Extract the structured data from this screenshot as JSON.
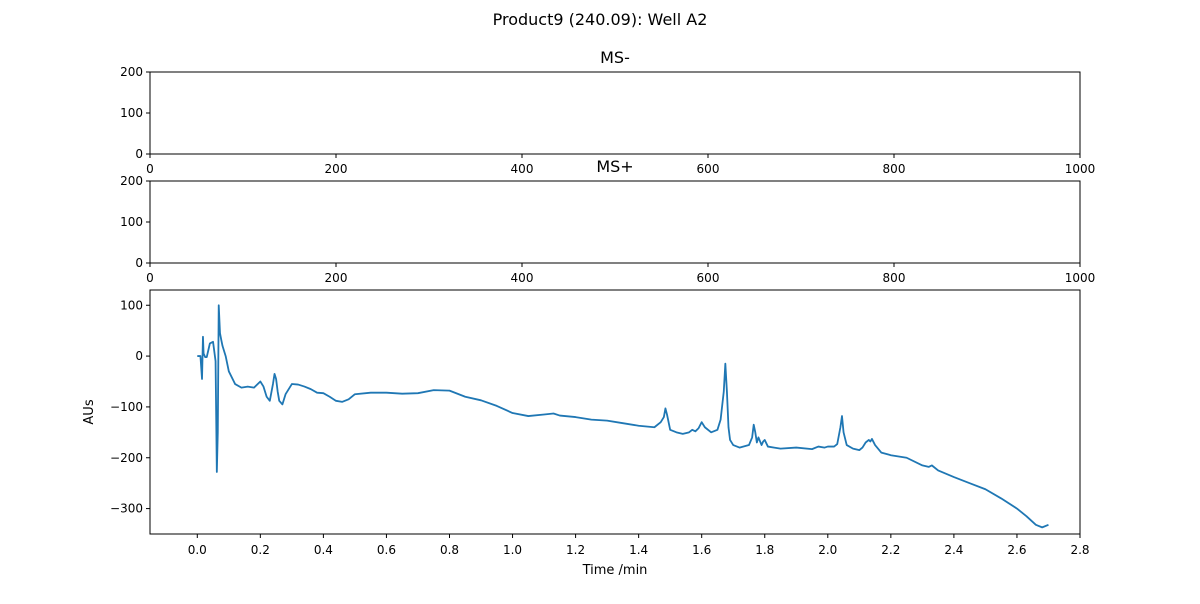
{
  "figure_title": "Product9 (240.09): Well A2",
  "chart_data": [
    {
      "type": "line",
      "title": "MS-",
      "xlabel": "",
      "ylabel": "",
      "xlim": [
        0,
        1000
      ],
      "ylim": [
        0,
        200
      ],
      "xticks": [
        0,
        200,
        400,
        600,
        800,
        1000
      ],
      "yticks": [
        0,
        100,
        200
      ],
      "series": []
    },
    {
      "type": "line",
      "title": "MS+",
      "xlabel": "",
      "ylabel": "",
      "xlim": [
        0,
        1000
      ],
      "ylim": [
        0,
        200
      ],
      "xticks": [
        0,
        200,
        400,
        600,
        800,
        1000
      ],
      "yticks": [
        0,
        100,
        200
      ],
      "series": []
    },
    {
      "type": "line",
      "title": "",
      "xlabel": "Time /min",
      "ylabel": "AUs",
      "xlim": [
        -0.15,
        2.8
      ],
      "ylim": [
        -350,
        130
      ],
      "xticks": [
        0.0,
        0.2,
        0.4,
        0.6,
        0.8,
        1.0,
        1.2,
        1.4,
        1.6,
        1.8,
        2.0,
        2.2,
        2.4,
        2.6,
        2.8
      ],
      "xticklabels": [
        "0.0",
        "0.2",
        "0.4",
        "0.6",
        "0.8",
        "1.0",
        "1.2",
        "1.4",
        "1.6",
        "1.8",
        "2.0",
        "2.2",
        "2.4",
        "2.6",
        "2.8"
      ],
      "yticks": [
        100,
        0,
        -100,
        -200,
        -300
      ],
      "yticklabels": [
        "100",
        "0",
        "−100",
        "−200",
        "−300"
      ],
      "color": "#1f77b4",
      "series": [
        {
          "x": [
            0.0,
            0.01,
            0.015,
            0.018,
            0.02,
            0.025,
            0.03,
            0.04,
            0.05,
            0.058,
            0.062,
            0.065,
            0.068,
            0.072,
            0.076,
            0.08,
            0.09,
            0.1,
            0.12,
            0.14,
            0.16,
            0.18,
            0.2,
            0.21,
            0.22,
            0.23,
            0.24,
            0.245,
            0.25,
            0.255,
            0.26,
            0.27,
            0.28,
            0.3,
            0.32,
            0.34,
            0.36,
            0.38,
            0.4,
            0.42,
            0.44,
            0.46,
            0.48,
            0.5,
            0.55,
            0.6,
            0.65,
            0.7,
            0.75,
            0.8,
            0.85,
            0.9,
            0.95,
            1.0,
            1.05,
            1.1,
            1.13,
            1.15,
            1.2,
            1.25,
            1.3,
            1.35,
            1.4,
            1.45,
            1.47,
            1.48,
            1.485,
            1.49,
            1.5,
            1.52,
            1.54,
            1.56,
            1.57,
            1.58,
            1.59,
            1.6,
            1.61,
            1.63,
            1.65,
            1.66,
            1.67,
            1.675,
            1.68,
            1.685,
            1.69,
            1.7,
            1.72,
            1.75,
            1.76,
            1.765,
            1.77,
            1.775,
            1.78,
            1.79,
            1.795,
            1.8,
            1.81,
            1.83,
            1.85,
            1.9,
            1.95,
            1.97,
            1.99,
            2.0,
            2.02,
            2.03,
            2.04,
            2.045,
            2.05,
            2.06,
            2.08,
            2.1,
            2.11,
            2.12,
            2.13,
            2.135,
            2.14,
            2.15,
            2.17,
            2.2,
            2.25,
            2.3,
            2.32,
            2.33,
            2.35,
            2.4,
            2.45,
            2.5,
            2.55,
            2.6,
            2.63,
            2.66,
            2.68,
            2.7
          ],
          "y": [
            0,
            0,
            -45,
            38,
            5,
            -2,
            -2,
            25,
            28,
            -10,
            -228,
            -150,
            100,
            45,
            32,
            20,
            0,
            -30,
            -55,
            -62,
            -60,
            -62,
            -50,
            -60,
            -80,
            -88,
            -55,
            -35,
            -45,
            -70,
            -88,
            -95,
            -75,
            -55,
            -56,
            -60,
            -65,
            -72,
            -73,
            -80,
            -88,
            -90,
            -85,
            -75,
            -72,
            -72,
            -74,
            -73,
            -67,
            -68,
            -80,
            -87,
            -98,
            -112,
            -118,
            -115,
            -113,
            -117,
            -120,
            -125,
            -127,
            -132,
            -137,
            -140,
            -130,
            -120,
            -103,
            -115,
            -145,
            -150,
            -153,
            -150,
            -145,
            -148,
            -142,
            -130,
            -140,
            -150,
            -145,
            -125,
            -70,
            -15,
            -70,
            -140,
            -165,
            -175,
            -180,
            -175,
            -160,
            -135,
            -150,
            -170,
            -160,
            -175,
            -168,
            -165,
            -178,
            -180,
            -182,
            -180,
            -183,
            -178,
            -180,
            -178,
            -178,
            -173,
            -140,
            -118,
            -150,
            -175,
            -182,
            -185,
            -180,
            -170,
            -165,
            -168,
            -163,
            -175,
            -190,
            -195,
            -200,
            -215,
            -218,
            -215,
            -225,
            -238,
            -250,
            -262,
            -280,
            -300,
            -315,
            -332,
            -337,
            -332
          ]
        }
      ]
    }
  ]
}
